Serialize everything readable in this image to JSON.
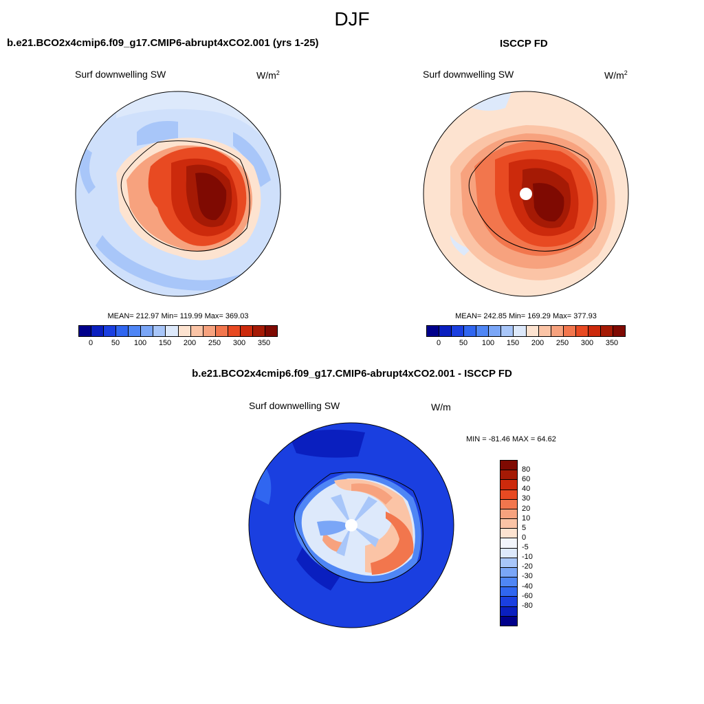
{
  "season": "DJF",
  "panel_model": {
    "title": "b.e21.BCO2x4cmip6.f09_g17.CMIP6-abrupt4xCO2.001 (yrs 1-25)",
    "variable": "Surf downwelling SW",
    "units_base": "W/m",
    "units_exp": "2",
    "stats": "MEAN= 212.97  Min= 119.99  Max= 369.03"
  },
  "panel_obs": {
    "title": "ISCCP FD",
    "variable": "Surf downwelling SW",
    "units_base": "W/m",
    "units_exp": "2",
    "stats": "MEAN= 242.85  Min= 169.29  Max= 377.93"
  },
  "panel_diff": {
    "title": "b.e21.BCO2x4cmip6.f09_g17.CMIP6-abrupt4xCO2.001 - ISCCP FD",
    "variable": "Surf downwelling SW",
    "units": "W/m",
    "stats": "MIN = -81.46 MAX =  64.62"
  },
  "abs_colorbar": {
    "colors": [
      "#00008b",
      "#0a1fbf",
      "#1a3fe0",
      "#3066f0",
      "#4f86f5",
      "#7aa6f7",
      "#a8c6f9",
      "#dde9fb",
      "#fde3d0",
      "#fbc4a6",
      "#f7a27e",
      "#f2764d",
      "#e84a22",
      "#cc2a0c",
      "#a51a05",
      "#7f0a02"
    ],
    "tick_labels": [
      "0",
      "50",
      "100",
      "150",
      "200",
      "250",
      "300",
      "350"
    ]
  },
  "diff_colorbar": {
    "colors": [
      "#7f0a02",
      "#a51a05",
      "#cc2a0c",
      "#e84a22",
      "#f2764d",
      "#f7a27e",
      "#fbc4a6",
      "#fde3d0",
      "#f2f5fb",
      "#dde9fb",
      "#a8c6f9",
      "#7aa6f7",
      "#4f86f5",
      "#3066f0",
      "#1a3fe0",
      "#0a1fbf",
      "#00008b"
    ],
    "tick_labels": [
      "80",
      "60",
      "40",
      "30",
      "20",
      "10",
      "5",
      "0",
      "-5",
      "-10",
      "-20",
      "-30",
      "-40",
      "-60",
      "-80"
    ]
  }
}
